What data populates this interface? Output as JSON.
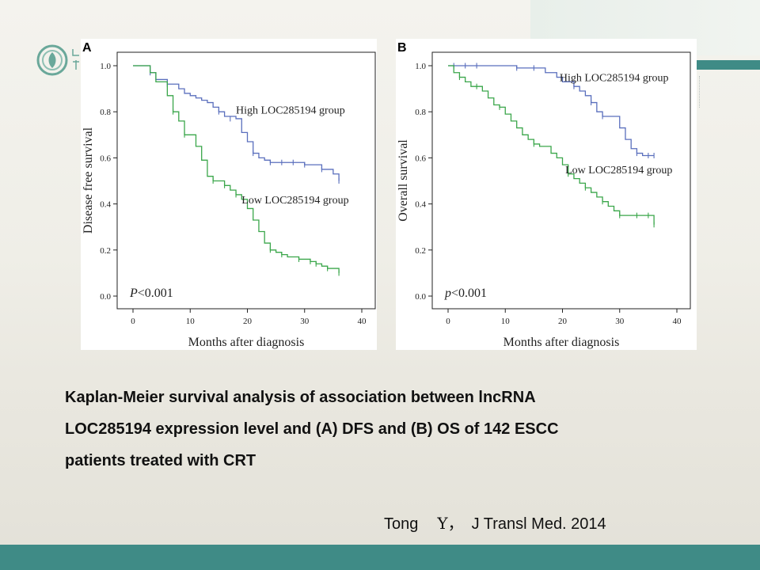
{
  "caption": {
    "lines": [
      "Kaplan-Meier survival analysis of association between lncRNA",
      "LOC285194 expression level and (A) DFS and (B) OS of 142 ESCC",
      "patients treated with CRT"
    ]
  },
  "citation": {
    "author": "Tong",
    "initial": "Y，",
    "journal": "J Transl Med. 2014"
  },
  "colors": {
    "high_group": "#5a6fbd",
    "low_group": "#3aa64a",
    "accent_teal": "#3f8b86"
  },
  "icons": [
    "hospital-logo-icon"
  ],
  "chart_data": [
    {
      "panel_label": "A",
      "type": "line",
      "subtype": "kaplan-meier",
      "xlabel": "Months after diagnosis",
      "ylabel": "Disease free survival",
      "xlim": [
        0,
        40
      ],
      "ylim": [
        0,
        1
      ],
      "xticks": [
        0,
        10,
        20,
        30,
        40
      ],
      "yticks": [
        0.0,
        0.2,
        0.4,
        0.6,
        0.8,
        1.0
      ],
      "ytick_labels": [
        "0.0",
        "0.2",
        "0.4",
        "0.6",
        "0.8",
        "1.0"
      ],
      "annotation_prefix": "P",
      "annotation_rest": "<0.001",
      "series": [
        {
          "name": "High LOC285194 group",
          "label_at": [
            18,
            0.81
          ],
          "steps": [
            [
              0,
              1.0
            ],
            [
              3,
              0.97
            ],
            [
              4,
              0.94
            ],
            [
              6,
              0.92
            ],
            [
              8,
              0.9
            ],
            [
              9,
              0.88
            ],
            [
              10,
              0.87
            ],
            [
              11,
              0.86
            ],
            [
              12,
              0.85
            ],
            [
              13,
              0.84
            ],
            [
              14,
              0.82
            ],
            [
              15,
              0.8
            ],
            [
              16,
              0.78
            ],
            [
              18,
              0.77
            ],
            [
              19,
              0.71
            ],
            [
              20,
              0.67
            ],
            [
              21,
              0.62
            ],
            [
              22,
              0.6
            ],
            [
              23,
              0.59
            ],
            [
              24,
              0.58
            ],
            [
              30,
              0.57
            ],
            [
              33,
              0.55
            ],
            [
              35,
              0.53
            ],
            [
              36,
              0.5
            ]
          ],
          "censors": [
            [
              3,
              0.97
            ],
            [
              6,
              0.92
            ],
            [
              15,
              0.8
            ],
            [
              17,
              0.77
            ],
            [
              21,
              0.62
            ],
            [
              24,
              0.58
            ],
            [
              26,
              0.58
            ],
            [
              28,
              0.58
            ],
            [
              30,
              0.57
            ],
            [
              33,
              0.55
            ],
            [
              36,
              0.5
            ]
          ]
        },
        {
          "name": "Low LOC285194 group",
          "label_at": [
            19,
            0.42
          ],
          "steps": [
            [
              0,
              1.0
            ],
            [
              3,
              0.97
            ],
            [
              4,
              0.93
            ],
            [
              6,
              0.87
            ],
            [
              7,
              0.8
            ],
            [
              8,
              0.76
            ],
            [
              9,
              0.7
            ],
            [
              11,
              0.65
            ],
            [
              12,
              0.59
            ],
            [
              13,
              0.52
            ],
            [
              14,
              0.5
            ],
            [
              16,
              0.48
            ],
            [
              17,
              0.46
            ],
            [
              18,
              0.44
            ],
            [
              19,
              0.42
            ],
            [
              20,
              0.38
            ],
            [
              21,
              0.33
            ],
            [
              22,
              0.28
            ],
            [
              23,
              0.23
            ],
            [
              24,
              0.2
            ],
            [
              25,
              0.19
            ],
            [
              26,
              0.18
            ],
            [
              27,
              0.17
            ],
            [
              29,
              0.16
            ],
            [
              31,
              0.15
            ],
            [
              32,
              0.14
            ],
            [
              33,
              0.13
            ],
            [
              34,
              0.12
            ],
            [
              36,
              0.1
            ]
          ],
          "censors": [
            [
              7,
              0.8
            ],
            [
              9,
              0.7
            ],
            [
              14,
              0.5
            ],
            [
              16,
              0.48
            ],
            [
              18,
              0.44
            ],
            [
              24,
              0.2
            ],
            [
              26,
              0.18
            ],
            [
              29,
              0.16
            ],
            [
              31,
              0.15
            ],
            [
              32,
              0.14
            ],
            [
              34,
              0.12
            ],
            [
              36,
              0.1
            ]
          ]
        }
      ]
    },
    {
      "panel_label": "B",
      "type": "line",
      "subtype": "kaplan-meier",
      "xlabel": "Months after diagnosis",
      "ylabel": "Overall survival",
      "xlim": [
        0,
        40
      ],
      "ylim": [
        0,
        1
      ],
      "xticks": [
        0,
        10,
        20,
        30,
        40
      ],
      "yticks": [
        0.0,
        0.2,
        0.4,
        0.6,
        0.8,
        1.0
      ],
      "ytick_labels": [
        "0.0",
        "0.2",
        "0.4",
        "0.6",
        "0.8",
        "1.0"
      ],
      "annotation_prefix": "p",
      "annotation_rest": "<0.001",
      "series": [
        {
          "name": "High LOC285194 group",
          "label_at": [
            19.5,
            0.95
          ],
          "steps": [
            [
              0,
              1.0
            ],
            [
              12,
              0.99
            ],
            [
              17,
              0.97
            ],
            [
              19,
              0.95
            ],
            [
              20,
              0.93
            ],
            [
              22,
              0.91
            ],
            [
              23,
              0.89
            ],
            [
              24,
              0.87
            ],
            [
              25,
              0.84
            ],
            [
              26,
              0.8
            ],
            [
              27,
              0.78
            ],
            [
              30,
              0.73
            ],
            [
              31,
              0.68
            ],
            [
              32,
              0.64
            ],
            [
              33,
              0.62
            ],
            [
              34,
              0.61
            ],
            [
              36,
              0.61
            ]
          ],
          "censors": [
            [
              1,
              1.0
            ],
            [
              3,
              1.0
            ],
            [
              5,
              1.0
            ],
            [
              12,
              0.99
            ],
            [
              15,
              0.99
            ],
            [
              22,
              0.91
            ],
            [
              25,
              0.84
            ],
            [
              27,
              0.78
            ],
            [
              33,
              0.62
            ],
            [
              35,
              0.61
            ],
            [
              36,
              0.61
            ]
          ]
        },
        {
          "name": "Low LOC285194 group",
          "label_at": [
            20.5,
            0.55
          ],
          "steps": [
            [
              0,
              1.0
            ],
            [
              1,
              0.97
            ],
            [
              2,
              0.95
            ],
            [
              3,
              0.93
            ],
            [
              4,
              0.91
            ],
            [
              6,
              0.89
            ],
            [
              7,
              0.86
            ],
            [
              8,
              0.83
            ],
            [
              9,
              0.82
            ],
            [
              10,
              0.79
            ],
            [
              11,
              0.76
            ],
            [
              12,
              0.73
            ],
            [
              13,
              0.7
            ],
            [
              14,
              0.68
            ],
            [
              15,
              0.66
            ],
            [
              16,
              0.65
            ],
            [
              18,
              0.62
            ],
            [
              19,
              0.6
            ],
            [
              20,
              0.57
            ],
            [
              21,
              0.53
            ],
            [
              22,
              0.51
            ],
            [
              23,
              0.49
            ],
            [
              24,
              0.47
            ],
            [
              25,
              0.45
            ],
            [
              26,
              0.43
            ],
            [
              27,
              0.41
            ],
            [
              28,
              0.39
            ],
            [
              29,
              0.37
            ],
            [
              30,
              0.35
            ],
            [
              36,
              0.31
            ]
          ],
          "censors": [
            [
              2,
              0.95
            ],
            [
              5,
              0.91
            ],
            [
              9,
              0.82
            ],
            [
              15,
              0.66
            ],
            [
              21,
              0.53
            ],
            [
              24,
              0.47
            ],
            [
              27,
              0.41
            ],
            [
              30,
              0.35
            ],
            [
              33,
              0.35
            ],
            [
              35,
              0.35
            ],
            [
              36,
              0.31
            ]
          ]
        }
      ]
    }
  ]
}
